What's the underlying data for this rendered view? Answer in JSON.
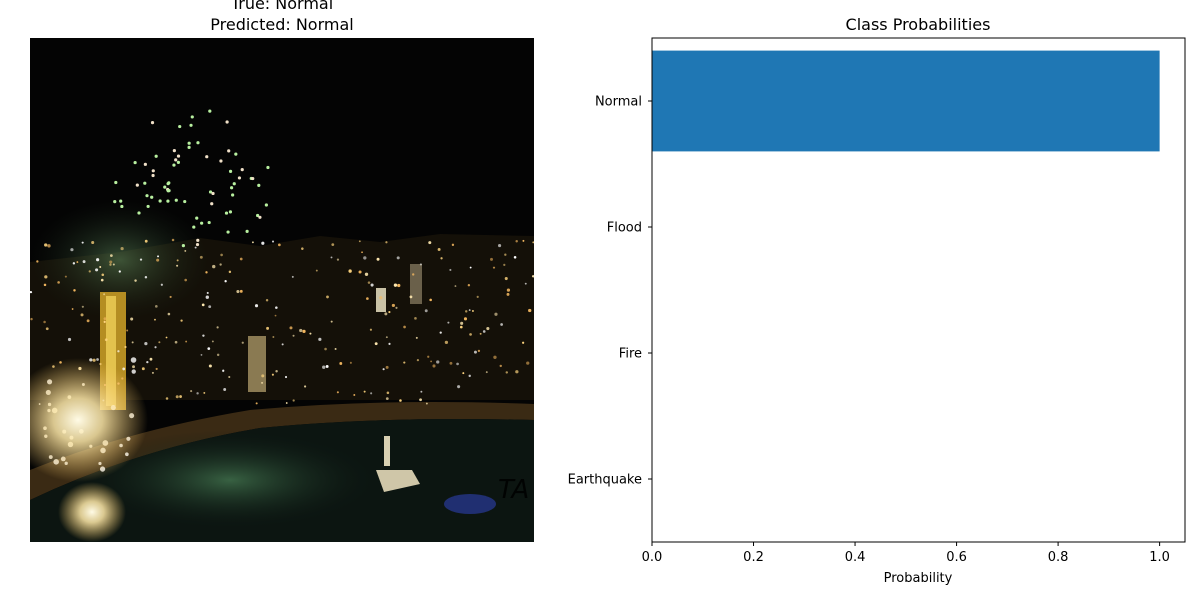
{
  "image_panel": {
    "title_line1": "True: Normal",
    "title_line2": "Predicted: Normal",
    "watermark": "TA"
  },
  "chart_data": {
    "type": "bar",
    "orientation": "horizontal",
    "title": "Class Probabilities",
    "xlabel": "Probability",
    "ylabel": "",
    "categories": [
      "Earthquake",
      "Fire",
      "Flood",
      "Normal"
    ],
    "values": [
      0.0,
      0.0,
      0.0,
      1.0
    ],
    "xlim": [
      0.0,
      1.05
    ],
    "xticks": [
      "0.0",
      "0.2",
      "0.4",
      "0.6",
      "0.8",
      "1.0"
    ],
    "bar_color": "#1f77b4",
    "grid": false
  }
}
